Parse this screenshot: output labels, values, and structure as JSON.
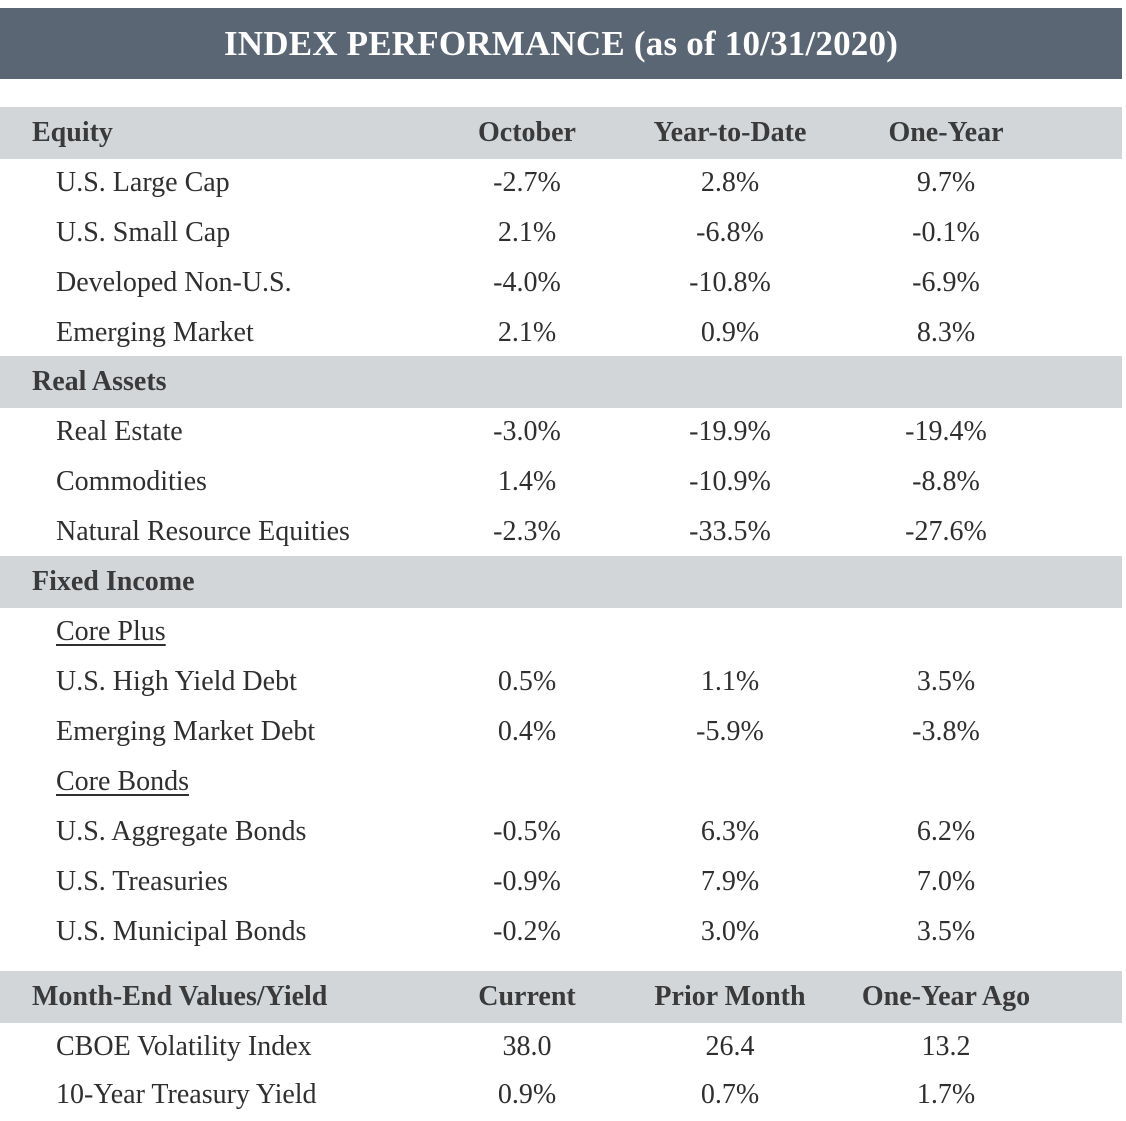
{
  "title": "INDEX PERFORMANCE (as of 10/31/2020)",
  "sections": {
    "equity": {
      "header": [
        "Equity",
        "October",
        "Year-to-Date",
        "One-Year"
      ],
      "rows": [
        [
          "U.S. Large Cap",
          "-2.7%",
          "2.8%",
          "9.7%"
        ],
        [
          "U.S. Small Cap",
          "2.1%",
          "-6.8%",
          "-0.1%"
        ],
        [
          "Developed Non-U.S.",
          "-4.0%",
          "-10.8%",
          "-6.9%"
        ],
        [
          "Emerging Market",
          "2.1%",
          "0.9%",
          "8.3%"
        ]
      ]
    },
    "real_assets": {
      "header": [
        "Real Assets"
      ],
      "rows": [
        [
          "Real Estate",
          "-3.0%",
          "-19.9%",
          "-19.4%"
        ],
        [
          "Commodities",
          "1.4%",
          "-10.9%",
          "-8.8%"
        ],
        [
          "Natural Resource Equities",
          "-2.3%",
          "-33.5%",
          "-27.6%"
        ]
      ]
    },
    "fixed_income": {
      "header": [
        "Fixed Income"
      ],
      "core_plus": {
        "label": "Core Plus",
        "rows": [
          [
            "U.S. High Yield Debt",
            "0.5%",
            "1.1%",
            "3.5%"
          ],
          [
            "Emerging Market Debt",
            "0.4%",
            "-5.9%",
            "-3.8%"
          ]
        ]
      },
      "core_bonds": {
        "label": "Core Bonds",
        "rows": [
          [
            "U.S. Aggregate Bonds",
            "-0.5%",
            "6.3%",
            "6.2%"
          ],
          [
            "U.S. Treasuries",
            "-0.9%",
            "7.9%",
            "7.0%"
          ],
          [
            "U.S. Municipal Bonds",
            "-0.2%",
            "3.0%",
            "3.5%"
          ]
        ]
      }
    },
    "month_end": {
      "header": [
        "Month-End Values/Yield",
        "Current",
        "Prior Month",
        "One-Year Ago"
      ],
      "rows": [
        [
          "CBOE Volatility Index",
          "38.0",
          "26.4",
          "13.2"
        ],
        [
          "10-Year Treasury Yield",
          "0.9%",
          "0.7%",
          "1.7%"
        ]
      ]
    }
  }
}
